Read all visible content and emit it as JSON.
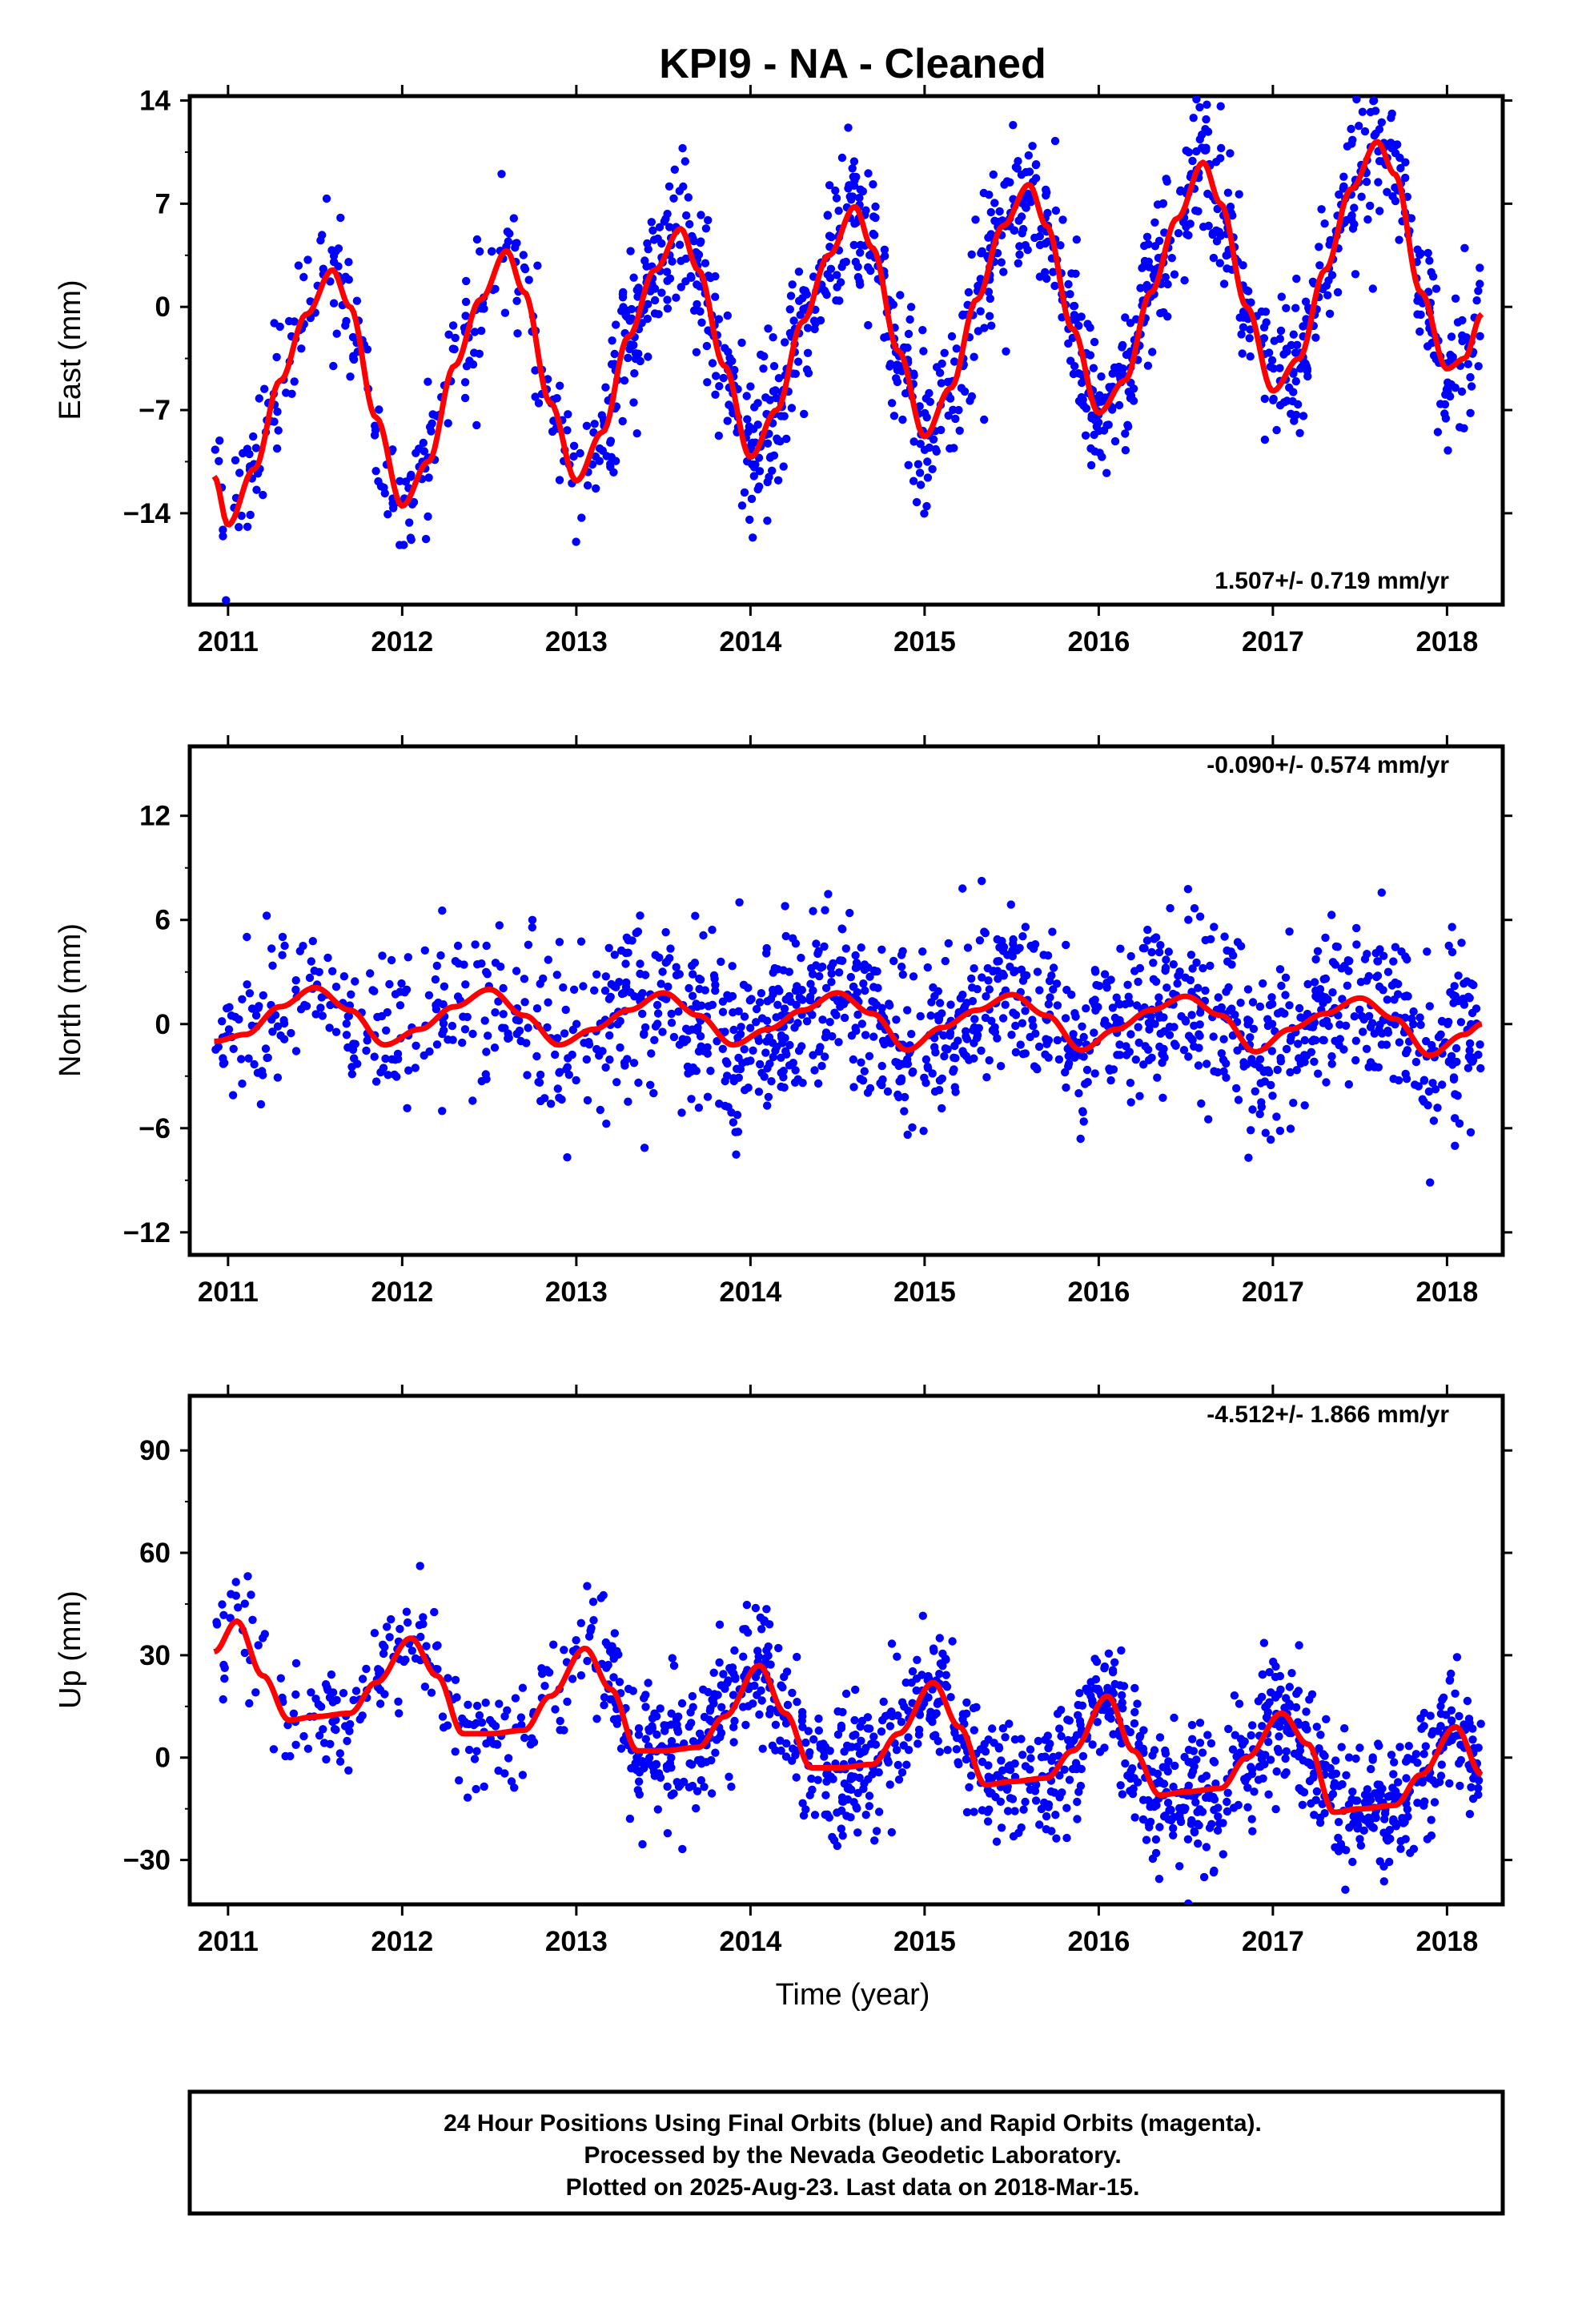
{
  "title": "KPI9  - NA - Cleaned",
  "xlabel": "Time (year)",
  "footer": {
    "line1": "24 Hour Positions Using Final Orbits (blue) and Rapid Orbits (magenta).",
    "line2": "Processed by the Nevada Geodetic Laboratory.",
    "line3": "Plotted on 2025-Aug-23. Last data on 2018-Mar-15."
  },
  "colors": {
    "observations": "#0000ff",
    "model": "#ff0000"
  },
  "chart_data": [
    {
      "type": "scatter",
      "ylabel": "East (mm)",
      "rate": "1.507+/- 0.719 mm/yr",
      "xlim": [
        2010.78,
        2018.32
      ],
      "ylim": [
        -20.2,
        14.3
      ],
      "yticks": [
        -14,
        -7,
        0,
        7,
        14
      ],
      "xticks": [
        2011,
        2012,
        2013,
        2014,
        2015,
        2016,
        2017,
        2018
      ],
      "model_x": [
        2010.92,
        2011.0,
        2011.15,
        2011.3,
        2011.45,
        2011.6,
        2011.7,
        2011.85,
        2012.0,
        2012.15,
        2012.3,
        2012.45,
        2012.6,
        2012.7,
        2012.85,
        2013.0,
        2013.15,
        2013.3,
        2013.45,
        2013.6,
        2013.7,
        2013.85,
        2014.0,
        2014.15,
        2014.3,
        2014.45,
        2014.6,
        2014.7,
        2014.85,
        2015.0,
        2015.15,
        2015.3,
        2015.45,
        2015.6,
        2015.7,
        2015.85,
        2016.0,
        2016.15,
        2016.3,
        2016.45,
        2016.6,
        2016.7,
        2016.85,
        2017.0,
        2017.15,
        2017.3,
        2017.45,
        2017.6,
        2017.7,
        2017.85,
        2018.0,
        2018.1,
        2018.2
      ],
      "model_y": [
        -11.5,
        -14.8,
        -11.0,
        -5.0,
        -0.5,
        2.5,
        0.0,
        -7.5,
        -13.5,
        -10.5,
        -4.0,
        0.5,
        3.8,
        1.0,
        -6.5,
        -11.8,
        -8.5,
        -2.0,
        2.5,
        5.3,
        2.5,
        -4.0,
        -10.2,
        -7.0,
        -1.0,
        3.5,
        6.8,
        4.0,
        -3.0,
        -8.8,
        -5.5,
        0.5,
        5.5,
        8.3,
        5.5,
        -1.5,
        -7.2,
        -5.0,
        1.0,
        6.0,
        9.8,
        7.0,
        0.0,
        -5.7,
        -3.5,
        2.5,
        8.0,
        11.2,
        9.0,
        1.0,
        -4.2,
        -3.5,
        -0.5
      ],
      "amp": [
        4.5,
        5.0,
        7.5,
        7.2,
        7.0,
        4.8,
        6.8,
        5.8
      ],
      "scatter_sd": 2.3,
      "n_points": 1450
    },
    {
      "type": "scatter",
      "ylabel": "North (mm)",
      "rate": "-0.090+/- 0.574 mm/yr",
      "xlim": [
        2010.78,
        2018.32
      ],
      "ylim": [
        -13.3,
        16.0
      ],
      "yticks": [
        -12,
        -6,
        0,
        6,
        12
      ],
      "xticks": [
        2011,
        2012,
        2013,
        2014,
        2015,
        2016,
        2017,
        2018
      ],
      "model_x": [
        2010.92,
        2011.1,
        2011.3,
        2011.5,
        2011.7,
        2011.9,
        2012.1,
        2012.3,
        2012.5,
        2012.7,
        2012.9,
        2013.1,
        2013.3,
        2013.5,
        2013.7,
        2013.9,
        2014.1,
        2014.3,
        2014.5,
        2014.7,
        2014.9,
        2015.1,
        2015.3,
        2015.5,
        2015.7,
        2015.9,
        2016.1,
        2016.3,
        2016.5,
        2016.7,
        2016.9,
        2017.1,
        2017.3,
        2017.5,
        2017.7,
        2017.9,
        2018.1,
        2018.2
      ],
      "model_y": [
        -1.0,
        -0.6,
        1.0,
        2.1,
        0.8,
        -1.2,
        -0.3,
        1.0,
        2.0,
        0.5,
        -1.2,
        -0.3,
        0.8,
        1.8,
        0.5,
        -1.2,
        -0.3,
        0.8,
        1.8,
        0.6,
        -1.5,
        -0.2,
        0.8,
        1.7,
        0.5,
        -1.5,
        -0.3,
        0.8,
        1.6,
        0.5,
        -1.6,
        -0.3,
        0.6,
        1.5,
        0.3,
        -1.8,
        -0.6,
        0.0
      ],
      "amp": [
        1.5,
        1.5,
        1.5,
        1.5,
        1.5,
        1.5,
        1.5,
        1.5
      ],
      "scatter_sd": 2.7,
      "n_points": 1450
    },
    {
      "type": "scatter",
      "ylabel": "Up (mm)",
      "rate": "-4.512+/- 1.866 mm/yr",
      "xlim": [
        2010.78,
        2018.32
      ],
      "ylim": [
        -43.0,
        106.0
      ],
      "yticks": [
        -30,
        0,
        30,
        60,
        90
      ],
      "xticks": [
        2011,
        2012,
        2013,
        2014,
        2015,
        2016,
        2017,
        2018
      ],
      "model_x": [
        2010.92,
        2011.05,
        2011.2,
        2011.35,
        2011.5,
        2011.7,
        2011.85,
        2012.05,
        2012.2,
        2012.35,
        2012.5,
        2012.7,
        2012.85,
        2013.05,
        2013.2,
        2013.35,
        2013.5,
        2013.7,
        2013.85,
        2014.05,
        2014.2,
        2014.35,
        2014.5,
        2014.7,
        2014.85,
        2015.05,
        2015.2,
        2015.35,
        2015.5,
        2015.7,
        2015.85,
        2016.05,
        2016.2,
        2016.35,
        2016.5,
        2016.7,
        2016.85,
        2017.05,
        2017.2,
        2017.35,
        2017.5,
        2017.7,
        2017.85,
        2018.05,
        2018.2
      ],
      "model_y": [
        31,
        40,
        24,
        11,
        12,
        13,
        22,
        35,
        24,
        7,
        7,
        8,
        18,
        32,
        20,
        2,
        2,
        3,
        12,
        27,
        13,
        -3,
        -3,
        -2,
        7,
        22,
        9,
        -8,
        -7,
        -6,
        2,
        18,
        2,
        -11,
        -10,
        -9,
        0,
        13,
        4,
        -16,
        -15,
        -14,
        -5,
        9,
        -5
      ],
      "amp": [
        8,
        8,
        10,
        12,
        12,
        12,
        12,
        10
      ],
      "scatter_sd": 7.5,
      "n_points": 1450
    }
  ]
}
